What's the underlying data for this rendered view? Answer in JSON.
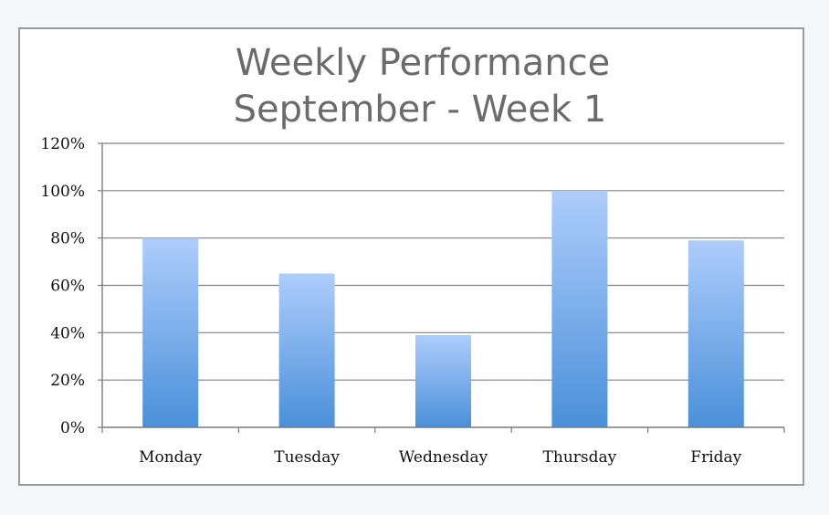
{
  "chart_data": {
    "type": "bar",
    "title": "Weekly Performance",
    "subtitle": "September - Week 1",
    "categories": [
      "Monday",
      "Tuesday",
      "Wednesday",
      "Thursday",
      "Friday"
    ],
    "values": [
      80,
      65,
      39,
      100,
      79
    ],
    "value_unit": "%",
    "ylim": [
      0,
      120
    ],
    "y_ticks": [
      "0%",
      "20%",
      "40%",
      "60%",
      "80%",
      "100%",
      "120%"
    ],
    "grid": true,
    "legend": "none",
    "xlabel": "",
    "ylabel": "",
    "colors": {
      "bar_top": "#aecdfc",
      "bar_bottom": "#4a90d9",
      "grid": "#808080",
      "axis": "#7a7a7a",
      "title": "#6b6b6b"
    }
  }
}
